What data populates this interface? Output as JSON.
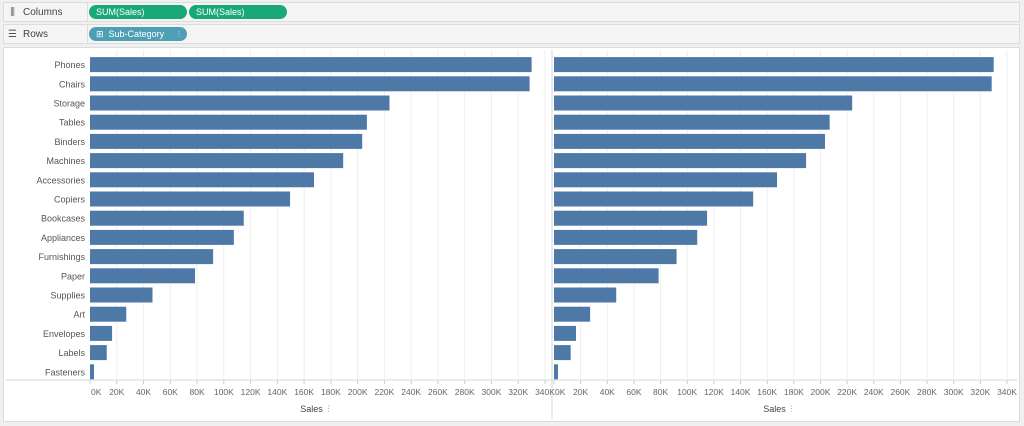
{
  "shelves": {
    "columns": {
      "label": "Columns",
      "icon": "columns-icon",
      "pills": [
        "SUM(Sales)",
        "SUM(Sales)"
      ]
    },
    "rows": {
      "label": "Rows",
      "icon": "rows-icon",
      "pill": "Sub-Category"
    }
  },
  "colors": {
    "bar": "#4e79a7",
    "pill_measure": "#19a979",
    "pill_dimension": "#4e9fb4"
  },
  "chart_data": [
    {
      "type": "bar",
      "orientation": "horizontal",
      "categories": [
        "Phones",
        "Chairs",
        "Storage",
        "Tables",
        "Binders",
        "Machines",
        "Accessories",
        "Copiers",
        "Bookcases",
        "Appliances",
        "Furnishings",
        "Paper",
        "Supplies",
        "Art",
        "Envelopes",
        "Labels",
        "Fasteners"
      ],
      "values": [
        330000,
        328500,
        223800,
        206900,
        203400,
        189200,
        167400,
        149500,
        114900,
        107500,
        92000,
        78500,
        46700,
        27100,
        16500,
        12500,
        3000
      ],
      "xlabel": "Sales",
      "xlim": [
        0,
        340000
      ],
      "xticks": [
        "0K",
        "20K",
        "40K",
        "60K",
        "80K",
        "100K",
        "120K",
        "140K",
        "160K",
        "180K",
        "200K",
        "220K",
        "240K",
        "260K",
        "280K",
        "300K",
        "320K",
        "340K"
      ],
      "grid": true
    },
    {
      "type": "bar",
      "orientation": "horizontal",
      "categories": [
        "Phones",
        "Chairs",
        "Storage",
        "Tables",
        "Binders",
        "Machines",
        "Accessories",
        "Copiers",
        "Bookcases",
        "Appliances",
        "Furnishings",
        "Paper",
        "Supplies",
        "Art",
        "Envelopes",
        "Labels",
        "Fasteners"
      ],
      "values": [
        330000,
        328500,
        223800,
        206900,
        203400,
        189200,
        167400,
        149500,
        114900,
        107500,
        92000,
        78500,
        46700,
        27100,
        16500,
        12500,
        3000
      ],
      "xlabel": "Sales",
      "xlim": [
        0,
        340000
      ],
      "xticks": [
        "0K",
        "20K",
        "40K",
        "60K",
        "80K",
        "100K",
        "120K",
        "140K",
        "160K",
        "180K",
        "200K",
        "220K",
        "240K",
        "260K",
        "280K",
        "300K",
        "320K",
        "340K"
      ],
      "grid": true
    }
  ]
}
